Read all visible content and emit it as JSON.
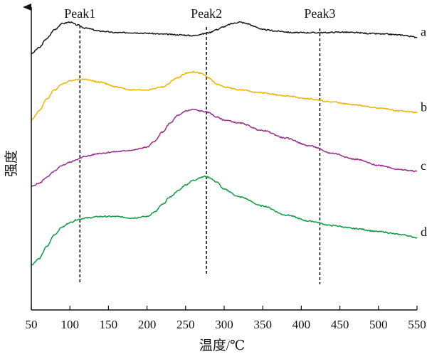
{
  "chart_data": {
    "type": "line",
    "xlabel": "温度/℃",
    "ylabel": "强度",
    "xlim": [
      50,
      550
    ],
    "x_ticks": [
      50,
      100,
      150,
      200,
      250,
      300,
      350,
      400,
      450,
      500,
      550
    ],
    "y_ticks_shown": false,
    "grid": false,
    "legend": "series labels at right end of each curve",
    "y_units": "arbitrary intensity (curves vertically offset)",
    "vlines": [
      {
        "label": "Peak1",
        "x": 113,
        "style": "dashed"
      },
      {
        "label": "Peak2",
        "x": 277,
        "style": "dashed"
      },
      {
        "label": "Peak3",
        "x": 424,
        "style": "dashed"
      }
    ],
    "series": [
      {
        "name": "a",
        "color": "#1a1a1a",
        "x": [
          50,
          60,
          70,
          80,
          90,
          100,
          110,
          120,
          140,
          160,
          180,
          200,
          220,
          240,
          260,
          270,
          280,
          290,
          300,
          310,
          320,
          330,
          340,
          350,
          370,
          390,
          410,
          430,
          450,
          470,
          490,
          510,
          530,
          550
        ],
        "y": [
          0.85,
          0.87,
          0.9,
          0.93,
          0.95,
          0.955,
          0.945,
          0.935,
          0.925,
          0.92,
          0.92,
          0.918,
          0.915,
          0.913,
          0.91,
          0.915,
          0.92,
          0.93,
          0.94,
          0.95,
          0.955,
          0.95,
          0.94,
          0.93,
          0.925,
          0.92,
          0.92,
          0.92,
          0.922,
          0.92,
          0.917,
          0.915,
          0.912,
          0.905
        ]
      },
      {
        "name": "b",
        "color": "#f0b400",
        "x": [
          50,
          60,
          70,
          80,
          90,
          100,
          110,
          120,
          140,
          160,
          180,
          200,
          220,
          240,
          250,
          260,
          270,
          280,
          290,
          300,
          320,
          350,
          380,
          410,
          440,
          470,
          500,
          530,
          550
        ],
        "y": [
          0.63,
          0.66,
          0.7,
          0.73,
          0.75,
          0.76,
          0.765,
          0.765,
          0.755,
          0.74,
          0.73,
          0.73,
          0.74,
          0.77,
          0.785,
          0.79,
          0.785,
          0.77,
          0.75,
          0.74,
          0.73,
          0.72,
          0.71,
          0.7,
          0.69,
          0.68,
          0.67,
          0.66,
          0.655
        ]
      },
      {
        "name": "c",
        "color": "#992c8c",
        "x": [
          50,
          60,
          70,
          80,
          90,
          100,
          110,
          120,
          140,
          160,
          180,
          200,
          210,
          220,
          230,
          240,
          250,
          260,
          270,
          280,
          290,
          300,
          320,
          350,
          380,
          410,
          440,
          470,
          500,
          530,
          550
        ],
        "y": [
          0.41,
          0.42,
          0.44,
          0.46,
          0.48,
          0.49,
          0.5,
          0.51,
          0.52,
          0.525,
          0.53,
          0.54,
          0.56,
          0.59,
          0.62,
          0.645,
          0.66,
          0.665,
          0.66,
          0.655,
          0.64,
          0.63,
          0.62,
          0.595,
          0.57,
          0.545,
          0.52,
          0.5,
          0.48,
          0.465,
          0.46
        ]
      },
      {
        "name": "d",
        "color": "#119a44",
        "x": [
          50,
          60,
          70,
          80,
          90,
          100,
          110,
          120,
          140,
          160,
          180,
          200,
          210,
          220,
          230,
          240,
          250,
          260,
          270,
          275,
          280,
          290,
          300,
          320,
          350,
          380,
          410,
          440,
          470,
          500,
          530,
          550
        ],
        "y": [
          0.15,
          0.17,
          0.21,
          0.25,
          0.275,
          0.29,
          0.3,
          0.305,
          0.31,
          0.31,
          0.305,
          0.31,
          0.325,
          0.35,
          0.375,
          0.395,
          0.415,
          0.43,
          0.44,
          0.443,
          0.44,
          0.425,
          0.4,
          0.375,
          0.345,
          0.315,
          0.295,
          0.28,
          0.27,
          0.26,
          0.25,
          0.24
        ]
      }
    ]
  }
}
